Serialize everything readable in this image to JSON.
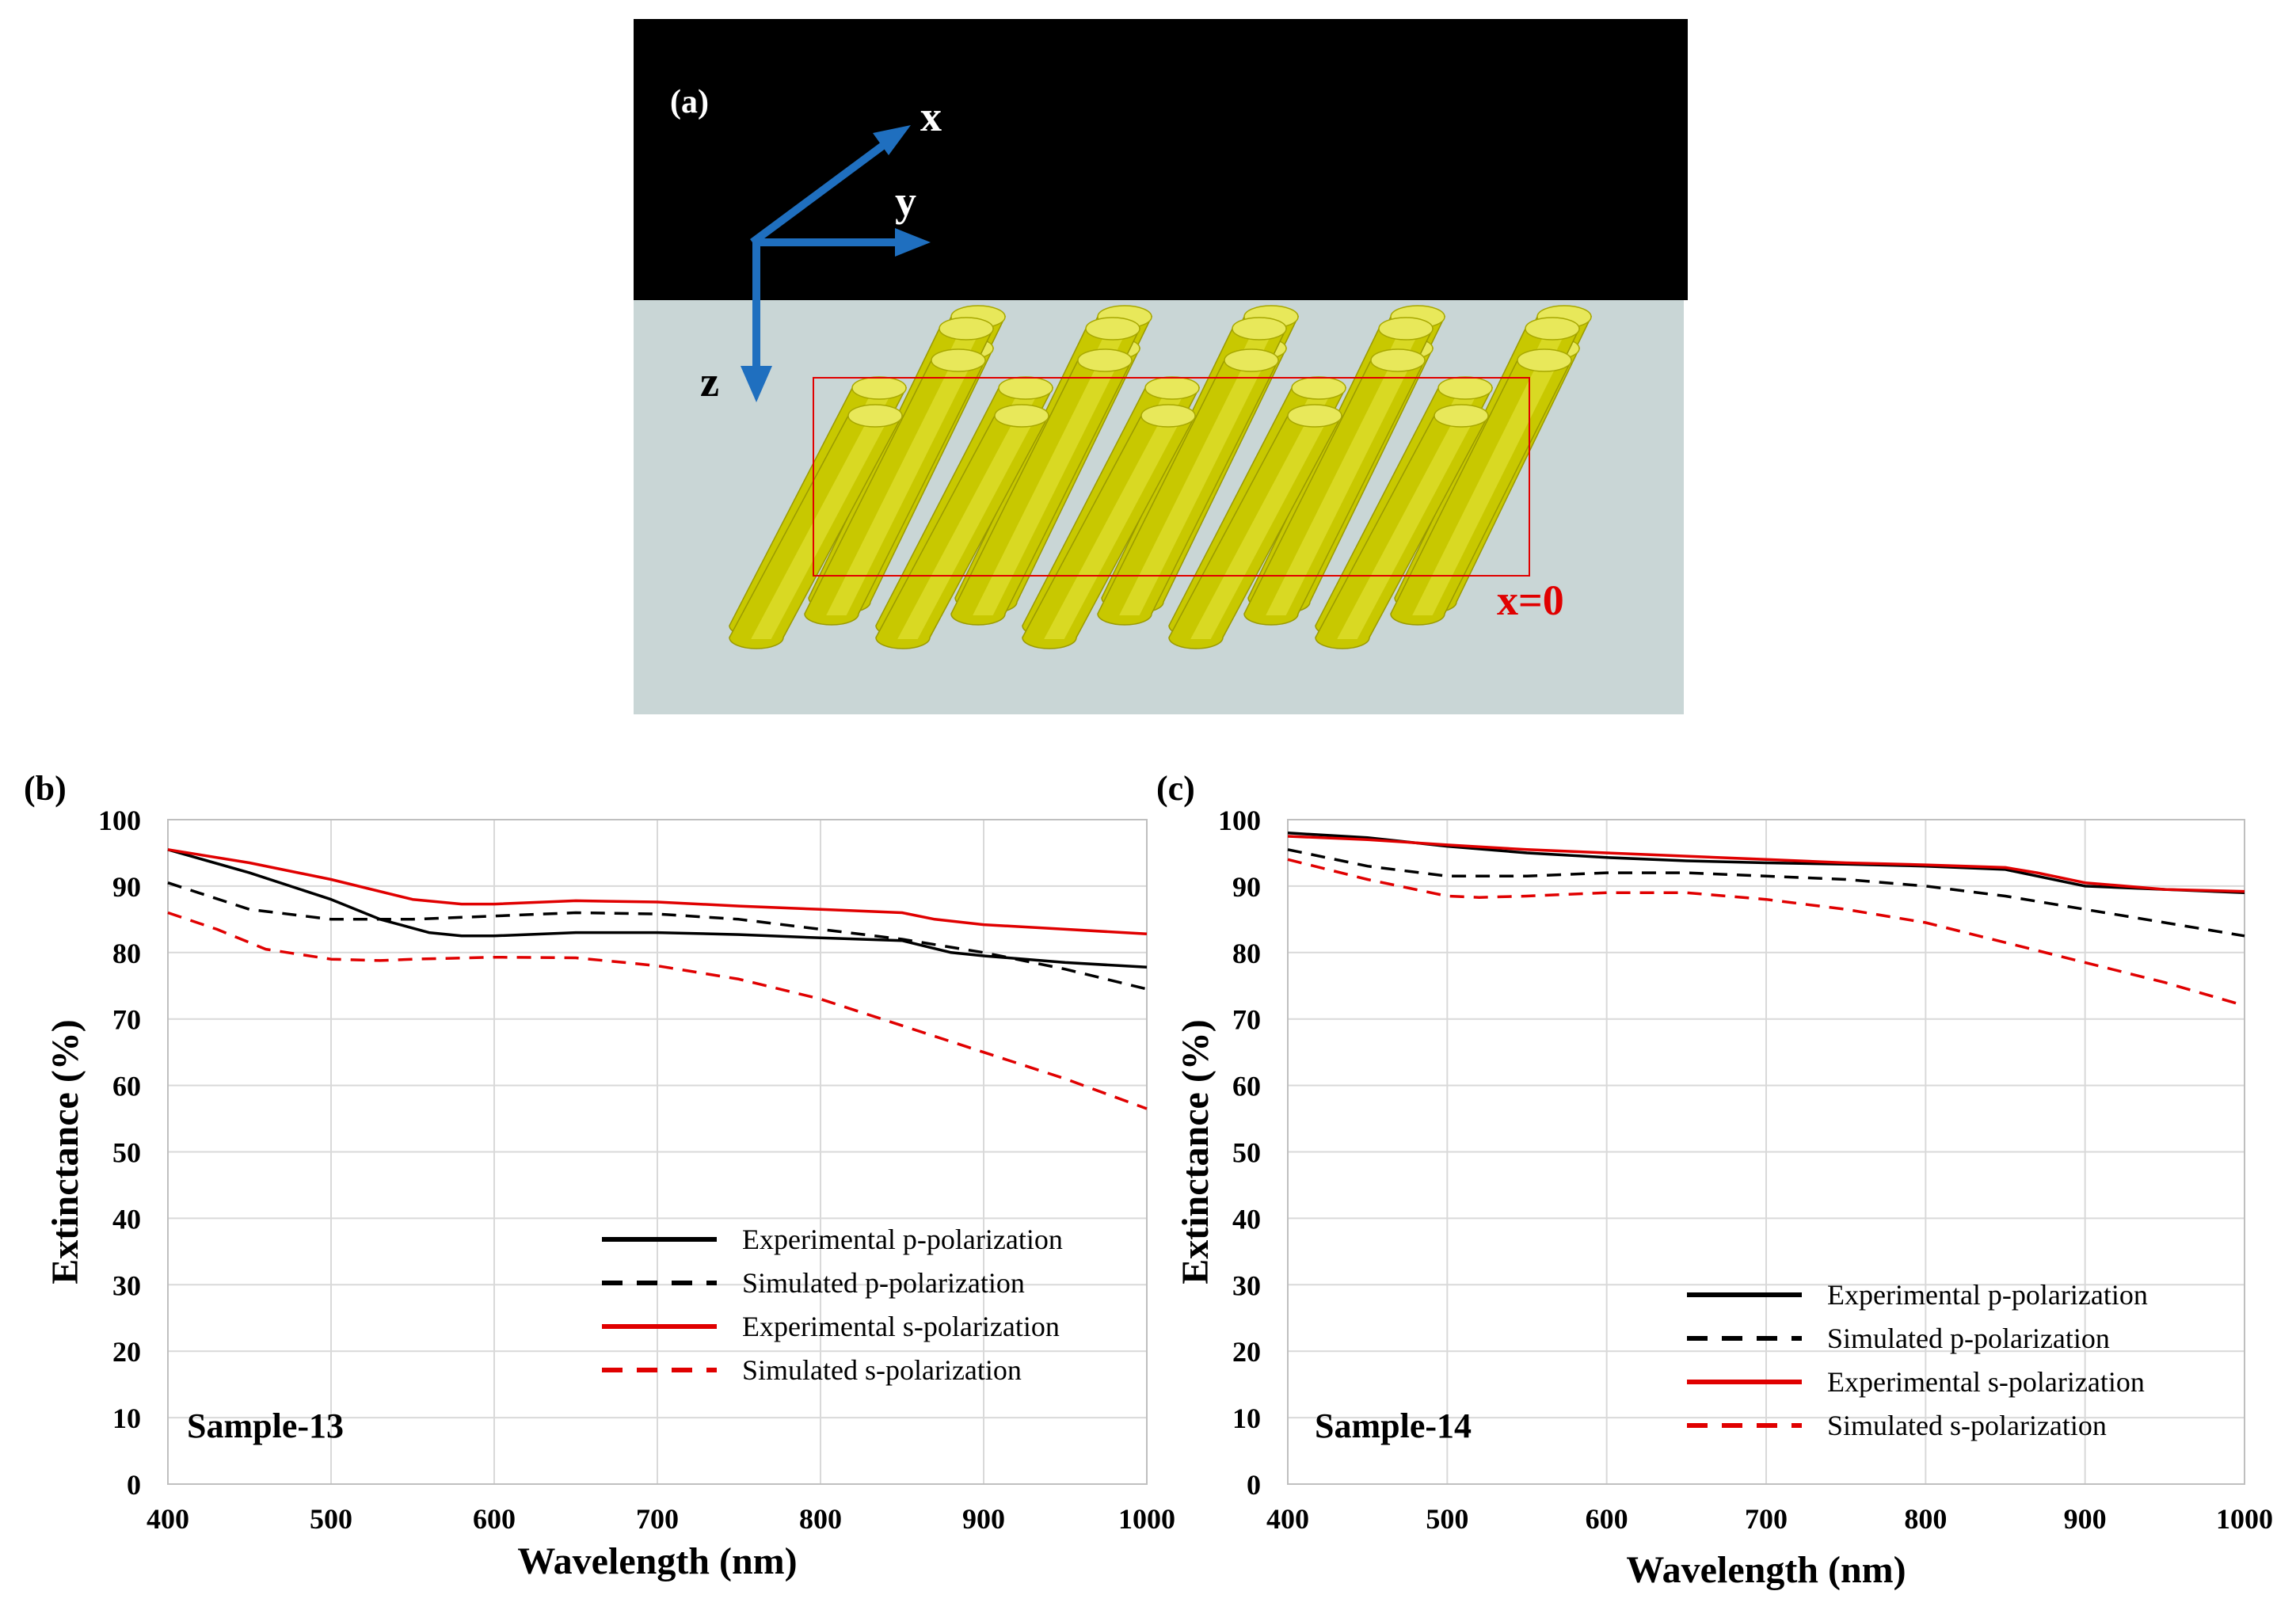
{
  "panel_a": {
    "label": "(a)",
    "axis_x": "x",
    "axis_y": "y",
    "axis_z": "z",
    "cut_label": "x=0",
    "colors": {
      "top": "#000000",
      "substrate": "#c9d6d6",
      "rod": "#d4d400",
      "arrow": "#1f6fbf",
      "cut": "#e00000"
    }
  },
  "chart_data": [
    {
      "type": "line",
      "panel_label": "(b)",
      "sample_label": "Sample-13",
      "xlabel": "Wavelength (nm)",
      "ylabel": "Extinctance (%)",
      "xlim": [
        400,
        1000
      ],
      "ylim": [
        0,
        100
      ],
      "xticks": [
        "400",
        "500",
        "600",
        "700",
        "800",
        "900",
        "1000"
      ],
      "yticks": [
        "0",
        "10",
        "20",
        "30",
        "40",
        "50",
        "60",
        "70",
        "80",
        "90",
        "100"
      ],
      "grid": true,
      "legend_position": "lower-right",
      "series": [
        {
          "name": "Experimental  p-polarization",
          "color": "#000000",
          "dash": false,
          "x": [
            400,
            450,
            500,
            530,
            560,
            580,
            600,
            650,
            700,
            750,
            800,
            850,
            880,
            900,
            950,
            1000
          ],
          "y": [
            95.5,
            92,
            88,
            85,
            83,
            82.5,
            82.5,
            83,
            83,
            82.7,
            82.2,
            81.8,
            80,
            79.5,
            78.5,
            77.8
          ]
        },
        {
          "name": "Simulated  p-polarization",
          "color": "#000000",
          "dash": true,
          "x": [
            400,
            450,
            500,
            550,
            600,
            650,
            700,
            750,
            800,
            850,
            900,
            950,
            1000
          ],
          "y": [
            90.5,
            86.5,
            85,
            85,
            85.5,
            86,
            85.8,
            85,
            83.5,
            82,
            80,
            77.5,
            74.5
          ]
        },
        {
          "name": "Experimental  s-polarization",
          "color": "#e00000",
          "dash": false,
          "x": [
            400,
            450,
            500,
            550,
            580,
            600,
            650,
            700,
            750,
            800,
            850,
            870,
            900,
            950,
            1000
          ],
          "y": [
            95.5,
            93.5,
            91,
            88,
            87.3,
            87.3,
            87.8,
            87.6,
            87,
            86.5,
            86,
            85,
            84.2,
            83.5,
            82.8
          ]
        },
        {
          "name": "Simulated  s-polarization",
          "color": "#e00000",
          "dash": true,
          "x": [
            400,
            430,
            460,
            500,
            530,
            550,
            600,
            650,
            680,
            700,
            750,
            800,
            850,
            900,
            950,
            1000
          ],
          "y": [
            86,
            83.5,
            80.5,
            79,
            78.8,
            79,
            79.3,
            79.2,
            78.5,
            78,
            76,
            73,
            69,
            65,
            61,
            56.5
          ]
        }
      ]
    },
    {
      "type": "line",
      "panel_label": "(c)",
      "sample_label": "Sample-14",
      "xlabel": "Wavelength (nm)",
      "ylabel": "Extinctance (%)",
      "xlim": [
        400,
        1000
      ],
      "ylim": [
        0,
        100
      ],
      "xticks": [
        "400",
        "500",
        "600",
        "700",
        "800",
        "900",
        "1000"
      ],
      "yticks": [
        "0",
        "10",
        "20",
        "30",
        "40",
        "50",
        "60",
        "70",
        "80",
        "90",
        "100"
      ],
      "grid": true,
      "legend_position": "lower-right",
      "series": [
        {
          "name": "Experimental  p-polarization",
          "color": "#000000",
          "dash": false,
          "x": [
            400,
            450,
            500,
            550,
            600,
            650,
            700,
            750,
            800,
            850,
            870,
            900,
            950,
            1000
          ],
          "y": [
            98,
            97.3,
            96,
            95,
            94.3,
            93.8,
            93.5,
            93.3,
            93,
            92.5,
            91.5,
            90,
            89.5,
            89
          ]
        },
        {
          "name": "Simulated  p-polarization",
          "color": "#000000",
          "dash": true,
          "x": [
            400,
            450,
            500,
            550,
            600,
            650,
            700,
            750,
            800,
            850,
            900,
            950,
            1000
          ],
          "y": [
            95.5,
            93,
            91.5,
            91.5,
            92,
            92,
            91.5,
            91,
            90,
            88.5,
            86.5,
            84.5,
            82.5
          ]
        },
        {
          "name": "Experimental  s-polarization",
          "color": "#e00000",
          "dash": false,
          "x": [
            400,
            450,
            500,
            550,
            600,
            650,
            700,
            750,
            800,
            850,
            870,
            900,
            950,
            1000
          ],
          "y": [
            97.5,
            97,
            96.2,
            95.5,
            95,
            94.5,
            94,
            93.5,
            93.2,
            92.8,
            92,
            90.5,
            89.5,
            89.2
          ]
        },
        {
          "name": "Simulated  s-polarization",
          "color": "#e00000",
          "dash": true,
          "x": [
            400,
            450,
            500,
            520,
            550,
            600,
            650,
            700,
            750,
            800,
            850,
            900,
            950,
            1000
          ],
          "y": [
            94,
            91,
            88.5,
            88.3,
            88.5,
            89,
            89,
            88,
            86.5,
            84.5,
            81.5,
            78.5,
            75.5,
            72
          ]
        }
      ]
    }
  ]
}
